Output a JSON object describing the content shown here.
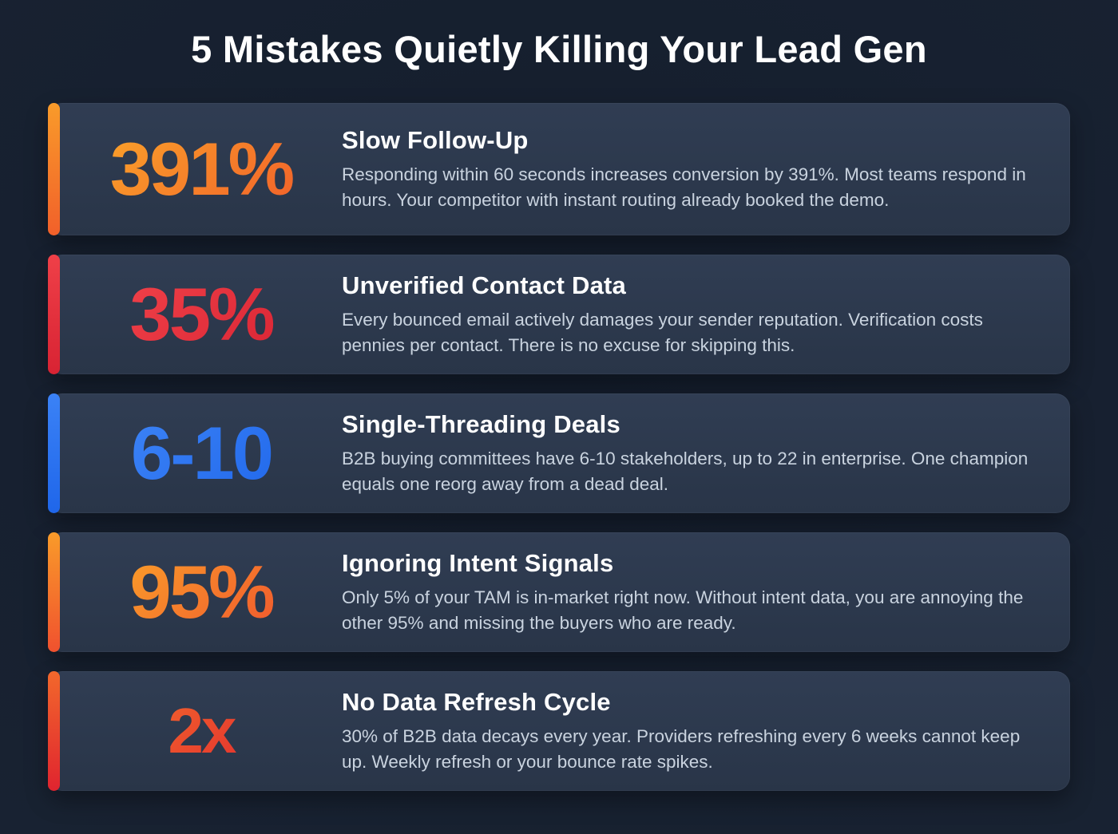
{
  "page": {
    "title": "5 Mistakes Quietly Killing Your Lead Gen",
    "background_color": "#17202f",
    "card_color": "#2d3a4e",
    "title_color": "#ffffff",
    "description_color": "#c9d3df"
  },
  "cards": [
    {
      "stat": "391%",
      "title": "Slow Follow-Up",
      "description": "Responding within 60 seconds increases conversion by 391%. Most teams respond in hours. Your competitor with instant routing already booked the demo.",
      "accent": {
        "from": "#f99b2a",
        "to": "#f1602a"
      }
    },
    {
      "stat": "35%",
      "title": "Unverified Contact Data",
      "description": "Every bounced email actively damages your sender reputation. Verification costs pennies per contact. There is no excuse for skipping this.",
      "accent": {
        "from": "#ef4048",
        "to": "#d82333"
      }
    },
    {
      "stat": "6-10",
      "title": "Single-Threading Deals",
      "description": "B2B buying committees have 6-10 stakeholders, up to 22 in enterprise. One champion equals one reorg away from a dead deal.",
      "accent": {
        "from": "#3b82f6",
        "to": "#1f66ea"
      }
    },
    {
      "stat": "95%",
      "title": "Ignoring Intent Signals",
      "description": "Only 5% of your TAM is in-market right now. Without intent data, you are annoying the other 95% and missing the buyers who are ready.",
      "accent": {
        "from": "#f99b2a",
        "to": "#f0512e"
      }
    },
    {
      "stat": "2x",
      "title": "No Data Refresh Cycle",
      "description": "30% of B2B data decays every year. Providers refreshing every 6 weeks cannot keep up. Weekly refresh or your bounce rate spikes.",
      "accent": {
        "from": "#f2682c",
        "to": "#e0242f"
      }
    }
  ]
}
